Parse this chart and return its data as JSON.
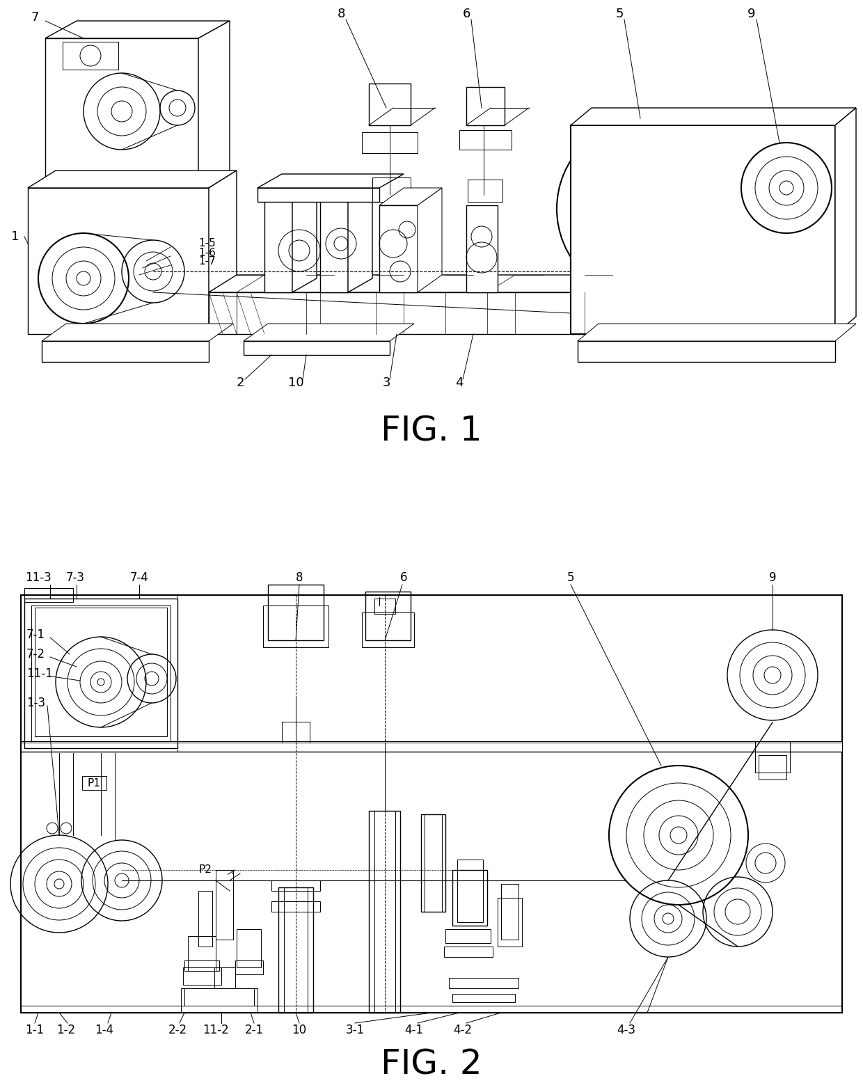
{
  "fig1_label": "FIG. 1",
  "fig2_label": "FIG. 2",
  "fig1_label_fontsize": 36,
  "fig2_label_fontsize": 36,
  "background_color": "#ffffff",
  "line_color": "#000000",
  "border_color": "#000000"
}
